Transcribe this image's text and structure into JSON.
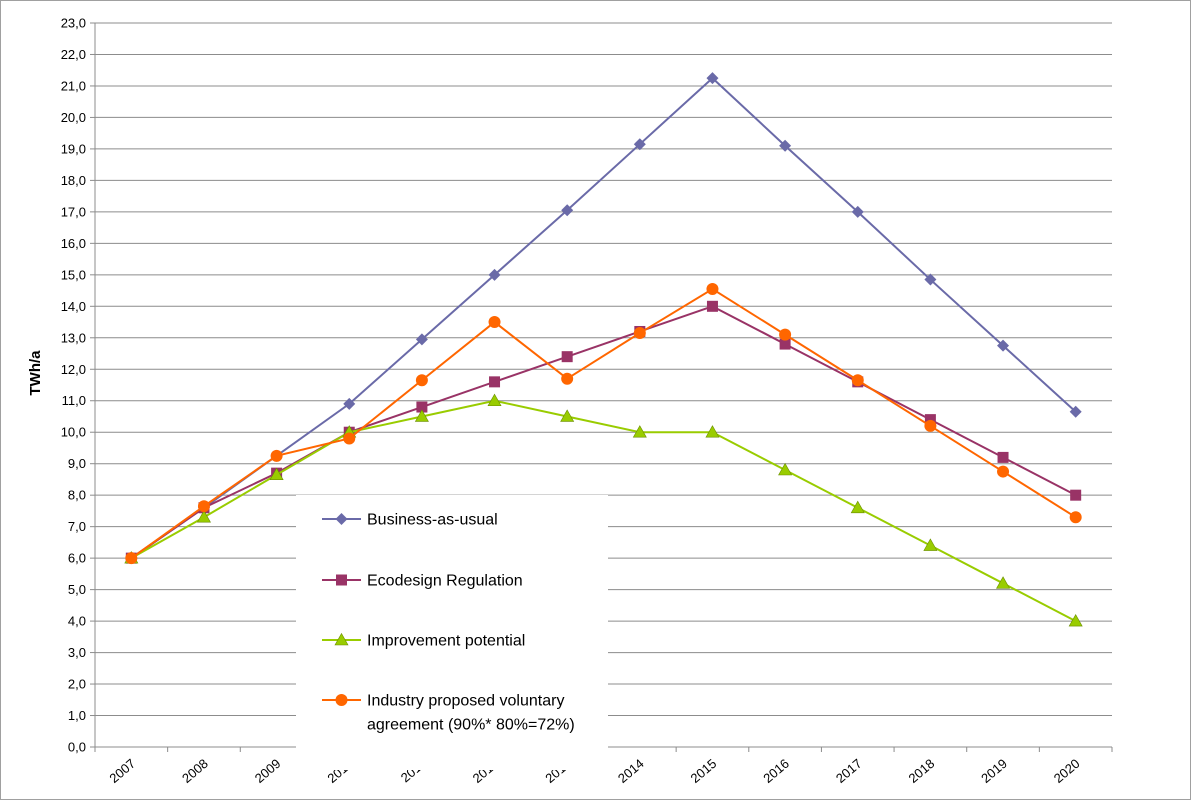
{
  "chart_data": {
    "type": "line",
    "title": "",
    "xlabel": "",
    "ylabel": "TWh/a",
    "ylim": [
      0,
      23
    ],
    "y_tick_step": 1,
    "y_tick_format": "one-decimal-comma",
    "grid": "horizontal",
    "legend_placement": "center-left-inside",
    "categories": [
      "2007",
      "2008",
      "2009",
      "2010",
      "2011",
      "2012",
      "2013",
      "2014",
      "2015",
      "2016",
      "2017",
      "2018",
      "2019",
      "2020"
    ],
    "series": [
      {
        "name": "Business-as-usual",
        "color": "#6a6aa8",
        "marker": "diamond",
        "values": [
          6.0,
          7.6,
          9.25,
          10.9,
          12.95,
          15.0,
          17.05,
          19.15,
          21.25,
          19.1,
          17.0,
          14.85,
          12.75,
          10.65
        ]
      },
      {
        "name": "Ecodesign Regulation",
        "color": "#993366",
        "marker": "square",
        "values": [
          6.0,
          7.6,
          8.7,
          10.0,
          10.8,
          11.6,
          12.4,
          13.2,
          14.0,
          12.8,
          11.6,
          10.4,
          9.2,
          8.0
        ]
      },
      {
        "name": "Improvement potential",
        "color": "#99cc00",
        "marker": "triangle",
        "values": [
          6.0,
          7.3,
          8.65,
          10.0,
          10.5,
          11.0,
          10.5,
          10.0,
          10.0,
          8.8,
          7.6,
          6.4,
          5.2,
          4.0
        ]
      },
      {
        "name": "Industry proposed voluntary agreement (90%* 80%=72%)",
        "color": "#ff6600",
        "marker": "circle",
        "legend_lines": [
          "Industry proposed voluntary",
          "agreement (90%* 80%=72%)"
        ],
        "values": [
          6.0,
          7.65,
          9.25,
          9.8,
          11.65,
          13.5,
          11.7,
          13.15,
          14.55,
          13.1,
          11.65,
          10.2,
          8.75,
          7.3
        ]
      }
    ]
  }
}
